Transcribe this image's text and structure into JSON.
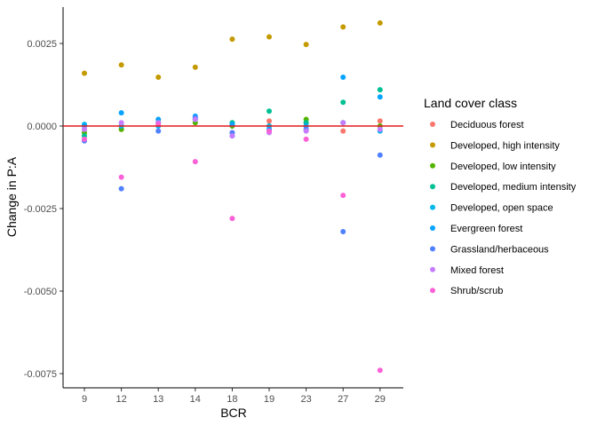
{
  "chart_data": {
    "type": "scatter",
    "title": "",
    "xlabel": "BCR",
    "ylabel": "Change in P:A",
    "categories": [
      "9",
      "12",
      "13",
      "14",
      "18",
      "19",
      "23",
      "27",
      "29"
    ],
    "ylim": [
      -0.008,
      0.0036
    ],
    "yticks": [
      {
        "value": 0.0025,
        "label": "0.0025"
      },
      {
        "value": 0.0,
        "label": "0.0000"
      },
      {
        "value": -0.0025,
        "label": "-0.0025"
      },
      {
        "value": -0.005,
        "label": "-0.0050"
      },
      {
        "value": -0.0075,
        "label": "-0.0075"
      }
    ],
    "grid": false,
    "reference_line": {
      "y": 0,
      "color": "#e31a1c"
    },
    "legend": {
      "title": "Land cover class",
      "position": "right"
    },
    "series": [
      {
        "name": "Deciduous forest",
        "color": "#F8766D",
        "values": [
          -0.0001,
          -0.0001,
          0.0002,
          0.0002,
          -0.0002,
          0.00015,
          0.0001,
          -0.00015,
          0.00015
        ]
      },
      {
        "name": "Developed, high intensity",
        "color": "#C49A00",
        "values": [
          0.0016,
          0.00185,
          0.00148,
          0.00178,
          0.00263,
          0.0027,
          0.00247,
          0.003,
          0.00312
        ]
      },
      {
        "name": "Developed, low intensity",
        "color": "#53B400",
        "values": [
          -0.0002,
          -0.0001,
          0.0001,
          0.0001,
          0.0,
          0.0,
          0.0002,
          0.0001,
          0.0
        ]
      },
      {
        "name": "Developed, medium intensity",
        "color": "#00C094",
        "values": [
          -0.0003,
          0.0,
          0.0001,
          0.0002,
          0.0001,
          0.00045,
          0.0001,
          0.00072,
          0.0011
        ]
      },
      {
        "name": "Developed, open space",
        "color": "#00B6EB",
        "values": [
          5e-05,
          0.0,
          0.0,
          0.0002,
          -0.0003,
          0.0,
          0.0,
          0.0001,
          -0.00015
        ]
      },
      {
        "name": "Evergreen forest",
        "color": "#06A4FF",
        "values": [
          0.0,
          0.0004,
          0.0002,
          0.0003,
          5e-05,
          -0.0001,
          0.0,
          0.00148,
          0.00088
        ]
      },
      {
        "name": "Grassland/herbaceous",
        "color": "#4F80FF",
        "values": [
          -0.00045,
          -0.0019,
          -0.00015,
          0.00025,
          -0.0002,
          -0.00015,
          -0.0001,
          -0.0032,
          -0.00088
        ]
      },
      {
        "name": "Mixed forest",
        "color": "#C77CFF",
        "values": [
          -0.0001,
          0.0001,
          0.0001,
          0.0002,
          -0.0003,
          -0.0002,
          -0.00015,
          0.0001,
          -0.0001
        ]
      },
      {
        "name": "Shrub/scrub",
        "color": "#FB61D7",
        "values": [
          -0.0004,
          -0.00155,
          5e-05,
          -0.00108,
          -0.0028,
          -0.00015,
          -0.0004,
          -0.0021,
          -0.0074
        ]
      }
    ]
  }
}
